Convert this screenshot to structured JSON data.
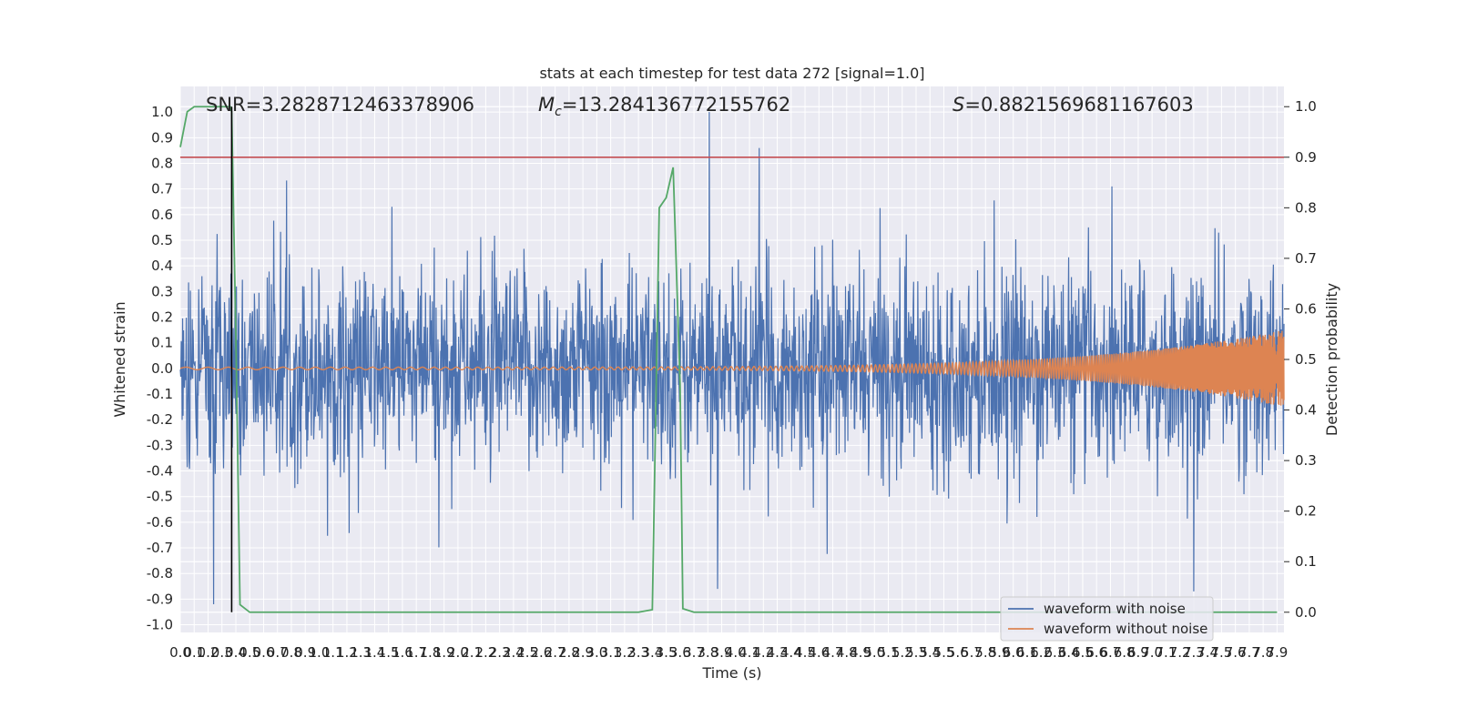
{
  "chart_data": {
    "type": "line",
    "title": "stats at each timestep for test data 272 [signal=1.0]",
    "xlabel": "Time (s)",
    "ylabel_left": "Whitened strain",
    "ylabel_right": "Detection probability",
    "xlim": [
      0.0,
      7.95
    ],
    "ylim_left": [
      -1.03,
      1.1
    ],
    "ylim_right": [
      -0.04,
      1.04
    ],
    "x_ticks": [
      "0.0",
      "0.1",
      "0.2",
      "0.3",
      "0.4",
      "0.5",
      "0.6",
      "0.7",
      "0.8",
      "0.9",
      "1.0",
      "1.1",
      "1.2",
      "1.3",
      "1.4",
      "1.5",
      "1.6",
      "1.7",
      "1.8",
      "1.9",
      "2.0",
      "2.1",
      "2.2",
      "2.3",
      "2.4",
      "2.5",
      "2.6",
      "2.7",
      "2.8",
      "2.9",
      "3.0",
      "3.1",
      "3.2",
      "3.3",
      "3.4",
      "3.5",
      "3.6",
      "3.7",
      "3.8",
      "3.9",
      "4.0",
      "4.1",
      "4.2",
      "4.3",
      "4.4",
      "4.5",
      "4.6",
      "4.7",
      "4.8",
      "4.9",
      "5.0",
      "5.1",
      "5.2",
      "5.3",
      "5.4",
      "5.5",
      "5.6",
      "5.7",
      "5.8",
      "5.9",
      "6.0",
      "6.1",
      "6.2",
      "6.3",
      "6.4",
      "6.5",
      "6.6",
      "6.7",
      "6.8",
      "6.9",
      "7.0",
      "7.1",
      "7.2",
      "7.3",
      "7.4",
      "7.5",
      "7.6",
      "7.7",
      "7.8",
      "7.9"
    ],
    "y_ticks_left": [
      "-1.0",
      "-0.9",
      "-0.8",
      "-0.7",
      "-0.6",
      "-0.5",
      "-0.4",
      "-0.3",
      "-0.2",
      "-0.1",
      "0.0",
      "0.1",
      "0.2",
      "0.3",
      "0.4",
      "0.5",
      "0.6",
      "0.7",
      "0.8",
      "0.9",
      "1.0"
    ],
    "y_ticks_right": [
      "0.0",
      "0.1",
      "0.2",
      "0.3",
      "0.4",
      "0.5",
      "0.6",
      "0.7",
      "0.8",
      "0.9",
      "1.0"
    ],
    "annotations": {
      "snr": "SNR=3.2828712463378906",
      "mc": "=13.284136772155762",
      "mc_symbol": "M",
      "mc_sub": "c",
      "s": "=0.8821569681167603",
      "s_symbol": "S"
    },
    "threshold": 0.9,
    "event_marker_time": 0.37,
    "series": [
      {
        "name": "waveform with noise",
        "color": "#4c72b0",
        "axis": "left",
        "noise_amplitude": 0.35,
        "peak": 1.0,
        "trough": -0.92
      },
      {
        "name": "waveform without noise",
        "color": "#dd8452",
        "axis": "left",
        "x_end": 7.95,
        "amplitude_start": 0.005,
        "amplitude_end": 0.15
      },
      {
        "name": "",
        "color": "#55a868",
        "axis": "right",
        "x": [
          0.0,
          0.05,
          0.1,
          0.2,
          0.3,
          0.36,
          0.37,
          0.4,
          0.43,
          0.5,
          1.0,
          2.0,
          3.0,
          3.3,
          3.4,
          3.45,
          3.5,
          3.55,
          3.6,
          3.62,
          3.7,
          4.0,
          5.0,
          6.0,
          7.0,
          7.9
        ],
        "y": [
          0.92,
          0.99,
          1.0,
          1.0,
          1.0,
          1.0,
          0.99,
          0.55,
          0.015,
          0.0,
          0.0,
          0.0,
          0.0,
          0.0,
          0.005,
          0.8,
          0.82,
          0.88,
          0.45,
          0.007,
          0.0,
          0.0,
          0.0,
          0.0,
          0.0,
          0.0
        ]
      }
    ],
    "legend": {
      "placement": "lower-right",
      "entries": [
        "waveform with noise",
        "waveform without noise"
      ]
    },
    "grid": true,
    "colors": {
      "plot_bg": "#eaeaf2",
      "grid": "#ffffff",
      "threshold_line": "#c44e52",
      "marker_line": "#000000"
    }
  }
}
